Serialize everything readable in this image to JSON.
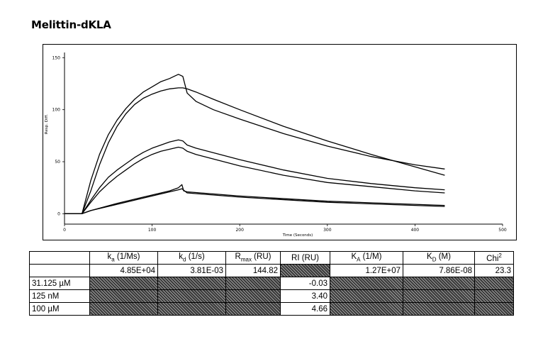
{
  "title": "Melittin-dKLA",
  "chart_data": {
    "type": "line",
    "xlabel": "Time (Seconds)",
    "ylabel": "Resp. Diff.",
    "xlim": [
      0,
      500
    ],
    "ylim": [
      -10,
      155
    ],
    "xticks": [
      "0",
      "100",
      "200",
      "300",
      "400",
      "500"
    ],
    "yticks": [
      "0",
      "50",
      "100",
      "150"
    ],
    "series": [
      {
        "x": [
          0,
          10,
          20,
          30,
          40,
          50,
          60,
          70,
          80,
          90,
          100,
          110,
          120,
          125,
          130,
          135,
          140,
          150,
          170,
          200,
          250,
          300,
          350,
          400,
          434
        ],
        "values": [
          0,
          0,
          0,
          32,
          57,
          76,
          90,
          101,
          110,
          117,
          122,
          127,
          130,
          132,
          134,
          132,
          116,
          108,
          100,
          91,
          77,
          65,
          55,
          47,
          43
        ]
      },
      {
        "x": [
          0,
          10,
          20,
          30,
          40,
          50,
          60,
          70,
          80,
          90,
          100,
          110,
          120,
          130,
          135,
          140,
          150,
          170,
          200,
          250,
          300,
          350,
          400,
          434
        ],
        "values": [
          0,
          0,
          0,
          22,
          47,
          68,
          84,
          96,
          105,
          111,
          115,
          118,
          120,
          121,
          121,
          120,
          117,
          110,
          100,
          84,
          70,
          57,
          45,
          37
        ]
      },
      {
        "x": [
          0,
          10,
          20,
          30,
          40,
          50,
          60,
          70,
          80,
          90,
          100,
          110,
          120,
          130,
          135,
          140,
          150,
          200,
          250,
          300,
          350,
          400,
          434
        ],
        "values": [
          0,
          0,
          0,
          13,
          25,
          35,
          42,
          48,
          54,
          59,
          63,
          66,
          69,
          71,
          70,
          66,
          63,
          52,
          42,
          34,
          29,
          25,
          23
        ]
      },
      {
        "x": [
          0,
          10,
          20,
          30,
          40,
          50,
          60,
          70,
          80,
          90,
          100,
          110,
          120,
          130,
          135,
          140,
          150,
          200,
          250,
          300,
          350,
          400,
          434
        ],
        "values": [
          0,
          0,
          0,
          11,
          21,
          29,
          36,
          42,
          48,
          53,
          57,
          60,
          62,
          64,
          63,
          60,
          57,
          46,
          37,
          30,
          26,
          22,
          20
        ]
      },
      {
        "x": [
          0,
          10,
          20,
          30,
          60,
          90,
          120,
          130,
          134,
          136,
          140,
          200,
          300,
          434
        ],
        "values": [
          0,
          0,
          0,
          3,
          10,
          16,
          22,
          25,
          28,
          22,
          21,
          17,
          12,
          8
        ]
      },
      {
        "x": [
          0,
          10,
          20,
          30,
          60,
          90,
          120,
          130,
          134,
          140,
          200,
          300,
          434
        ],
        "values": [
          0,
          0,
          0,
          3,
          9,
          15,
          21,
          23,
          24,
          20,
          16,
          11,
          7
        ]
      }
    ]
  },
  "table": {
    "headers": [
      "",
      "ka (1/Ms)",
      "kd (1/s)",
      "Rmax (RU)",
      "RI (RU)",
      "KA (1/M)",
      "KD (M)",
      "Chi2"
    ],
    "global_row": [
      "",
      "4.85E+04",
      "3.81E-03",
      "144.82",
      "",
      "1.27E+07",
      "7.86E-08",
      "23.3"
    ],
    "rows": [
      {
        "label": "31.125 µM",
        "ri": "-0.03"
      },
      {
        "label": "125 nM",
        "ri": "3.40"
      },
      {
        "label": "100 µM",
        "ri": "4.66"
      }
    ]
  }
}
